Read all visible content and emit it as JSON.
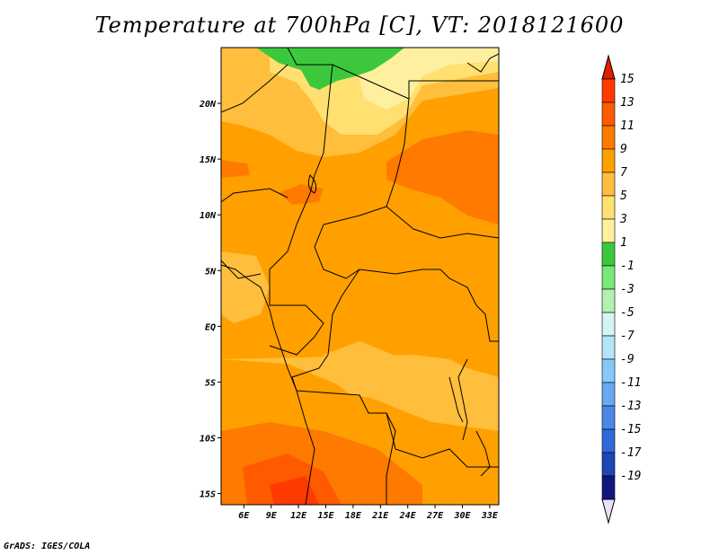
{
  "title": "Temperature at 700hPa [C], VT: 2018121600",
  "footer": "GrADS: IGES/COLA",
  "map": {
    "lon_range": [
      3.5,
      34
    ],
    "lat_range": [
      -16,
      25
    ],
    "x_ticks": [
      "6E",
      "9E",
      "12E",
      "15E",
      "18E",
      "21E",
      "24E",
      "27E",
      "30E",
      "33E"
    ],
    "x_tick_values": [
      6,
      9,
      12,
      15,
      18,
      21,
      24,
      27,
      30,
      33
    ],
    "y_ticks": [
      "20N",
      "15N",
      "10N",
      "5N",
      "EQ",
      "5S",
      "10S",
      "15S"
    ],
    "y_tick_values": [
      20,
      15,
      10,
      5,
      0,
      -5,
      -10,
      -15
    ]
  },
  "colorbar": {
    "labels": [
      "15",
      "13",
      "11",
      "9",
      "7",
      "5",
      "3",
      "1",
      "-1",
      "-3",
      "-5",
      "-7",
      "-9",
      "-11",
      "-13",
      "-15",
      "-17",
      "-19"
    ],
    "colors": [
      "#ff3a00",
      "#ff5a00",
      "#ff7a00",
      "#ffa000",
      "#ffbe3c",
      "#ffe070",
      "#fff0a0",
      "#3cc83c",
      "#78e878",
      "#b4f0b4",
      "#d2f5f0",
      "#b4e4f8",
      "#88c8f8",
      "#6aa8f0",
      "#4a88e8",
      "#3068d8",
      "#1e46b4",
      "#101880"
    ],
    "top_arrow_color": "#e01e00",
    "bottom_arrow_color": "#e8e0ff"
  }
}
